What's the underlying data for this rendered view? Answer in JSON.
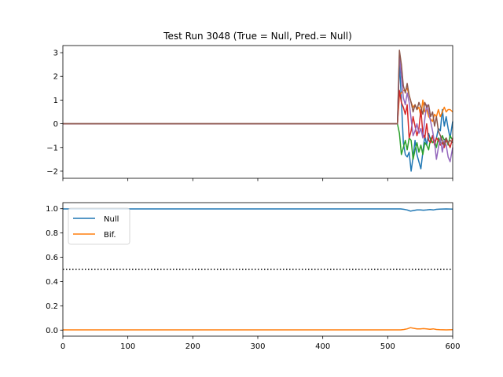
{
  "chart_data": [
    {
      "type": "line",
      "title": "Test Run 3048 (True = Null, Pred.= Null)",
      "xlabel": "",
      "ylabel": "",
      "xlim": [
        0,
        600
      ],
      "ylim": [
        -2.3,
        3.3
      ],
      "xticks": [
        0,
        100,
        200,
        300,
        400,
        500,
        600
      ],
      "xtick_labels_shown": false,
      "yticks": [
        -2,
        -1,
        0,
        1,
        2,
        3
      ],
      "ytick_labels": [
        "−2",
        "−1",
        "0",
        "1",
        "2",
        "3"
      ],
      "grid": false,
      "legend": false,
      "series": [
        {
          "color": "#1f77b4",
          "x": [
            0,
            515,
            518,
            521,
            524,
            527,
            530,
            533,
            536,
            539,
            542,
            545,
            548,
            551,
            554,
            557,
            560,
            563,
            566,
            569,
            572,
            575,
            578,
            581,
            584,
            587,
            590,
            593,
            596,
            600
          ],
          "y": [
            0,
            0,
            2.6,
            1.0,
            -0.8,
            -1.3,
            -1.4,
            -1.2,
            -2.0,
            -1.4,
            -0.7,
            -1.3,
            -1.6,
            -1.9,
            -1.2,
            -0.5,
            -0.9,
            -0.4,
            -0.7,
            -0.5,
            -0.8,
            -0.6,
            -0.2,
            -0.3,
            0.6,
            -0.1,
            0.3,
            -0.2,
            -0.6,
            0.1
          ]
        },
        {
          "color": "#ff7f0e",
          "x": [
            0,
            515,
            518,
            521,
            524,
            527,
            530,
            533,
            536,
            539,
            542,
            545,
            548,
            551,
            554,
            557,
            560,
            563,
            566,
            569,
            572,
            575,
            578,
            581,
            584,
            587,
            590,
            593,
            596,
            600
          ],
          "y": [
            0,
            0,
            1.2,
            1.3,
            1.4,
            1.4,
            1.5,
            1.2,
            0.9,
            0.7,
            0.8,
            0.6,
            0.7,
            0.3,
            1.0,
            0.5,
            0.6,
            0.3,
            0.2,
            0.1,
            0.4,
            0.3,
            0.6,
            0.3,
            0.5,
            0.7,
            0.5,
            0.6,
            0.6,
            0.5
          ]
        },
        {
          "color": "#2ca02c",
          "x": [
            0,
            515,
            518,
            521,
            524,
            527,
            530,
            533,
            536,
            539,
            542,
            545,
            548,
            551,
            554,
            557,
            560,
            563,
            566,
            569,
            572,
            575,
            578,
            581,
            584,
            587,
            590,
            593,
            596,
            600
          ],
          "y": [
            0,
            0,
            -0.4,
            -1.3,
            -1.0,
            -0.7,
            -1.1,
            -0.6,
            -0.7,
            -1.5,
            -1.1,
            -0.8,
            -1.2,
            -0.9,
            -1.3,
            -0.8,
            -0.9,
            -1.1,
            -0.6,
            -0.8,
            -0.7,
            -1.0,
            -0.6,
            -0.8,
            -0.5,
            -0.7,
            -0.6,
            -0.9,
            -0.5,
            -0.7
          ]
        },
        {
          "color": "#d62728",
          "x": [
            0,
            515,
            518,
            521,
            524,
            527,
            530,
            533,
            536,
            539,
            542,
            545,
            548,
            551,
            554,
            557,
            560,
            563,
            566,
            569,
            572,
            575,
            578,
            581,
            584,
            587,
            590,
            593,
            596,
            600
          ],
          "y": [
            0,
            0,
            1.4,
            0.9,
            0.7,
            0.4,
            0.8,
            -0.6,
            -0.3,
            0.3,
            -0.1,
            -0.5,
            -0.2,
            0.6,
            -0.4,
            -0.6,
            0.0,
            -0.7,
            -0.8,
            -0.5,
            -0.9,
            -0.6,
            -0.7,
            -0.9,
            -0.8,
            -1.0,
            -0.7,
            -0.8,
            -1.0,
            -0.6
          ]
        },
        {
          "color": "#9467bd",
          "x": [
            0,
            515,
            518,
            521,
            524,
            527,
            530,
            533,
            536,
            539,
            542,
            545,
            548,
            551,
            554,
            557,
            560,
            563,
            566,
            569,
            572,
            575,
            578,
            581,
            584,
            587,
            590,
            593,
            596,
            600
          ],
          "y": [
            0,
            0,
            2.9,
            2.0,
            1.1,
            0.8,
            1.3,
            0.9,
            0.2,
            -0.5,
            -0.3,
            0.0,
            -0.4,
            -0.2,
            -0.6,
            0.2,
            0.8,
            0.5,
            0.1,
            -0.3,
            -0.8,
            -1.5,
            -1.0,
            -0.6,
            -1.2,
            -0.7,
            -0.9,
            -1.4,
            -1.6,
            -1.0
          ]
        },
        {
          "color": "#8c564b",
          "x": [
            0,
            515,
            518,
            521,
            524,
            527,
            530,
            533,
            536,
            539,
            542,
            545,
            548,
            551,
            554,
            557,
            560,
            563,
            566,
            569,
            572,
            575,
            578,
            581,
            584,
            587,
            590,
            593,
            596,
            600
          ],
          "y": [
            0,
            0,
            3.1,
            2.5,
            1.6,
            1.3,
            1.7,
            1.2,
            0.9,
            0.5,
            0.8,
            0.6,
            0.9,
            0.7,
            0.4,
            0.9,
            0.7,
            0.8,
            0.3,
            0.5,
            -0.1,
            0.3,
            -0.3,
            -0.5,
            -0.7,
            -0.9,
            -0.6,
            -0.8,
            -0.7,
            -0.8
          ]
        }
      ]
    },
    {
      "type": "line",
      "title": "",
      "xlabel": "",
      "ylabel": "",
      "xlim": [
        0,
        600
      ],
      "ylim": [
        -0.05,
        1.05
      ],
      "xticks": [
        0,
        100,
        200,
        300,
        400,
        500,
        600
      ],
      "xtick_labels": [
        "0",
        "100",
        "200",
        "300",
        "400",
        "500",
        "600"
      ],
      "yticks": [
        0.0,
        0.2,
        0.4,
        0.6,
        0.8,
        1.0
      ],
      "ytick_labels": [
        "0.0",
        "0.2",
        "0.4",
        "0.6",
        "0.8",
        "1.0"
      ],
      "grid": false,
      "legend": "top-left",
      "threshold": {
        "y": 0.5,
        "style": "dotted",
        "color": "#000000"
      },
      "series": [
        {
          "name": "Null",
          "color": "#1f77b4",
          "x": [
            0,
            520,
            525,
            530,
            535,
            540,
            545,
            550,
            555,
            560,
            565,
            570,
            575,
            580,
            590,
            600
          ],
          "y": [
            0.998,
            0.998,
            0.995,
            0.99,
            0.98,
            0.985,
            0.99,
            0.99,
            0.988,
            0.99,
            0.993,
            0.99,
            0.995,
            0.997,
            0.998,
            0.997
          ]
        },
        {
          "name": "Bif.",
          "color": "#ff7f0e",
          "x": [
            0,
            520,
            525,
            530,
            535,
            540,
            545,
            550,
            555,
            560,
            565,
            570,
            575,
            580,
            590,
            600
          ],
          "y": [
            0.002,
            0.002,
            0.005,
            0.01,
            0.02,
            0.015,
            0.01,
            0.01,
            0.012,
            0.01,
            0.007,
            0.01,
            0.005,
            0.003,
            0.002,
            0.003
          ]
        }
      ]
    }
  ]
}
